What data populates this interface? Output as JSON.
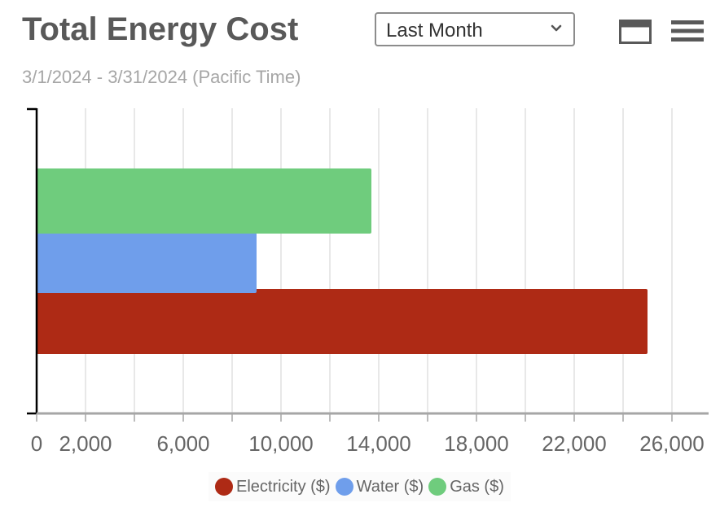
{
  "header": {
    "title": "Total Energy Cost",
    "subtitle": "3/1/2024 - 3/31/2024 (Pacific Time)",
    "range_select": {
      "value": "Last Month"
    },
    "icons": [
      "window-icon",
      "menu-icon"
    ]
  },
  "chart_data": {
    "type": "bar",
    "orientation": "horizontal",
    "categories": [
      ""
    ],
    "series": [
      {
        "name": "Electricity ($)",
        "values": [
          25000
        ],
        "color": "#ae2a15"
      },
      {
        "name": "Water ($)",
        "values": [
          9000
        ],
        "color": "#6f9eeb"
      },
      {
        "name": "Gas ($)",
        "values": [
          13700
        ],
        "color": "#6fcc7d"
      }
    ],
    "xlim": [
      0,
      27500
    ],
    "xticks": [
      0,
      2000,
      6000,
      10000,
      14000,
      18000,
      22000,
      26000
    ],
    "xtick_labels": [
      "0",
      "2,000",
      "6,000",
      "10,000",
      "14,000",
      "18,000",
      "22,000",
      "26,000"
    ],
    "grid": true,
    "legend": "bottom"
  }
}
